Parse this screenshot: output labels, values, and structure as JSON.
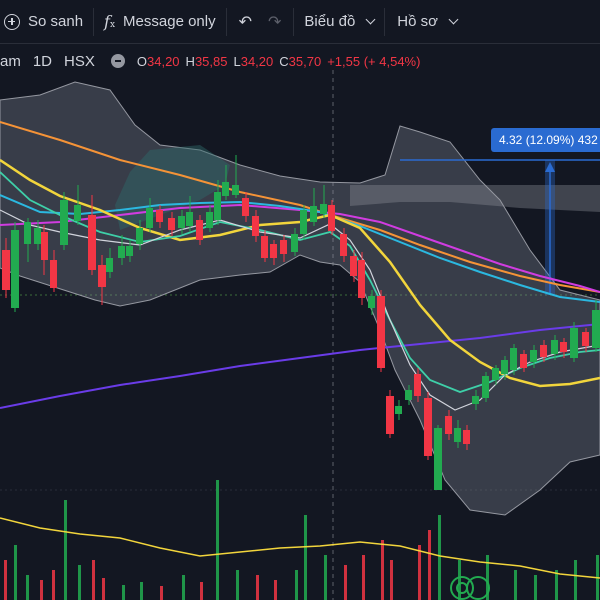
{
  "toolbar": {
    "compare_label": "So sanh",
    "indicators_label": "Message only",
    "chart_type_label": "Biểu đồ",
    "profile_label": "Hồ sơ",
    "icons": [
      "add-circle-icon",
      "function-icon",
      "undo-icon",
      "redo-icon",
      "chevron-down-icon"
    ]
  },
  "legend": {
    "symbol_fragment": "am",
    "interval": "1D",
    "exchange": "HSX",
    "open_key": "O",
    "open": "34,20",
    "high_key": "H",
    "high": "35,85",
    "low_key": "L",
    "low": "34,20",
    "close_key": "C",
    "close": "35,70",
    "change": "+1,55 (+ 4,54%)"
  },
  "measure": {
    "label": "4.32 (12.09%) 432"
  },
  "colors": {
    "background": "#131722",
    "up": "#22ab50",
    "down": "#f23645",
    "ma_yellow": "#f2d53c",
    "ma_orange": "#f59337",
    "ma_magenta": "#d03ce0",
    "ma_cyan": "#2bb8e0",
    "ma_teal": "#3ecfa8",
    "ma_purple": "#6a3ce8",
    "band": "#8a8f9c",
    "measure_blue": "#2a6bd1"
  }
}
